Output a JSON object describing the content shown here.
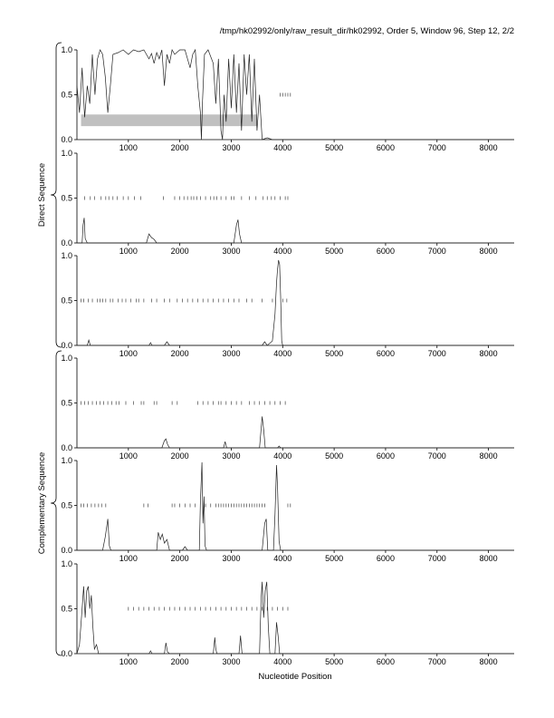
{
  "header": "/tmp/hk02992/only/raw_result_dir/hk02992, Order 5, Window 96, Step 12, 2/2",
  "xlabel": "Nucleotide Position",
  "groups": [
    "Direct Sequence",
    "Complementary Sequence"
  ],
  "chart_data": {
    "type": "line",
    "title": "/tmp/hk02992/only/raw_result_dir/hk02992, Order 5, Window 96, Step 12, 2/2",
    "xlabel": "Nucleotide Position",
    "xlim": [
      0,
      8500
    ],
    "ylim": [
      0,
      1
    ],
    "xticks": [
      1000,
      2000,
      3000,
      4000,
      5000,
      6000,
      7000,
      8000
    ],
    "yticks": [
      "0.0",
      "0.5",
      "1.0"
    ],
    "grid": false,
    "panels": [
      {
        "group": "Direct Sequence",
        "frame": 1,
        "highlight_band": {
          "x_start": 80,
          "x_end": 3500,
          "y_low": 0.15,
          "y_high": 0.28
        },
        "tick_marks_at_0_5": [
          3950,
          4000,
          4050,
          4100,
          4150
        ],
        "points": [
          [
            0,
            0.6
          ],
          [
            50,
            0.3
          ],
          [
            100,
            0.8
          ],
          [
            150,
            0.25
          ],
          [
            200,
            0.6
          ],
          [
            250,
            0.4
          ],
          [
            300,
            0.95
          ],
          [
            350,
            0.5
          ],
          [
            400,
            0.9
          ],
          [
            450,
            1.0
          ],
          [
            500,
            0.95
          ],
          [
            550,
            0.7
          ],
          [
            600,
            0.3
          ],
          [
            650,
            0.6
          ],
          [
            700,
            0.95
          ],
          [
            800,
            0.97
          ],
          [
            900,
            1.0
          ],
          [
            1000,
            0.95
          ],
          [
            1100,
            1.0
          ],
          [
            1200,
            0.98
          ],
          [
            1300,
            1.0
          ],
          [
            1400,
            0.9
          ],
          [
            1450,
            0.96
          ],
          [
            1500,
            0.85
          ],
          [
            1550,
            0.97
          ],
          [
            1600,
            0.9
          ],
          [
            1650,
            1.0
          ],
          [
            1700,
            0.6
          ],
          [
            1750,
            0.95
          ],
          [
            1800,
            0.85
          ],
          [
            1850,
            1.0
          ],
          [
            1900,
            0.95
          ],
          [
            2000,
            1.0
          ],
          [
            2100,
            1.0
          ],
          [
            2200,
            0.8
          ],
          [
            2250,
            0.95
          ],
          [
            2300,
            1.0
          ],
          [
            2350,
            0.6
          ],
          [
            2400,
            0.3
          ],
          [
            2420,
            0.0
          ],
          [
            2440,
            0.4
          ],
          [
            2480,
            0.95
          ],
          [
            2550,
            1.0
          ],
          [
            2650,
            0.85
          ],
          [
            2700,
            0.4
          ],
          [
            2750,
            0.9
          ],
          [
            2800,
            0.1
          ],
          [
            2830,
            0.0
          ],
          [
            2860,
            0.5
          ],
          [
            2900,
            0.2
          ],
          [
            2950,
            0.9
          ],
          [
            3000,
            0.35
          ],
          [
            3050,
            0.95
          ],
          [
            3100,
            0.3
          ],
          [
            3150,
            0.85
          ],
          [
            3200,
            0.1
          ],
          [
            3250,
            0.95
          ],
          [
            3300,
            0.5
          ],
          [
            3350,
            0.95
          ],
          [
            3400,
            0.2
          ],
          [
            3450,
            0.9
          ],
          [
            3500,
            0.1
          ],
          [
            3550,
            0.5
          ],
          [
            3600,
            0.0
          ],
          [
            3700,
            0.02
          ],
          [
            3800,
            0.0
          ],
          [
            8500,
            0.0
          ]
        ]
      },
      {
        "group": "Direct Sequence",
        "frame": 2,
        "tick_marks_at_0_5": [
          150,
          260,
          340,
          470,
          560,
          620,
          700,
          780,
          900,
          1000,
          1120,
          1240,
          1680,
          1900,
          2000,
          2080,
          2150,
          2220,
          2270,
          2330,
          2400,
          2500,
          2600,
          2660,
          2720,
          2800,
          2900,
          3000,
          3050,
          3200,
          3350,
          3480,
          3620,
          3700,
          3780,
          3850,
          3950,
          4050,
          4100
        ],
        "points": [
          [
            0,
            0.0
          ],
          [
            100,
            0.0
          ],
          [
            120,
            0.2
          ],
          [
            140,
            0.28
          ],
          [
            160,
            0.05
          ],
          [
            200,
            0.0
          ],
          [
            1350,
            0.0
          ],
          [
            1400,
            0.1
          ],
          [
            1450,
            0.06
          ],
          [
            1500,
            0.04
          ],
          [
            1550,
            0.0
          ],
          [
            3050,
            0.0
          ],
          [
            3100,
            0.2
          ],
          [
            3130,
            0.26
          ],
          [
            3160,
            0.1
          ],
          [
            3200,
            0.0
          ],
          [
            8500,
            0.0
          ]
        ]
      },
      {
        "group": "Direct Sequence",
        "frame": 3,
        "tick_marks_at_0_5": [
          80,
          130,
          220,
          300,
          400,
          450,
          500,
          560,
          650,
          700,
          800,
          880,
          950,
          1050,
          1150,
          1200,
          1300,
          1450,
          1550,
          1700,
          1800,
          1950,
          2050,
          2150,
          2250,
          2350,
          2450,
          2550,
          2650,
          2750,
          2850,
          2950,
          3050,
          3150,
          3300,
          3400,
          3600,
          3800,
          4000,
          4080
        ],
        "points": [
          [
            0,
            0.0
          ],
          [
            200,
            0.0
          ],
          [
            230,
            0.06
          ],
          [
            260,
            0.0
          ],
          [
            1400,
            0.0
          ],
          [
            1430,
            0.03
          ],
          [
            1460,
            0.0
          ],
          [
            1700,
            0.0
          ],
          [
            1750,
            0.04
          ],
          [
            1800,
            0.0
          ],
          [
            3600,
            0.0
          ],
          [
            3650,
            0.04
          ],
          [
            3700,
            0.0
          ],
          [
            3800,
            0.05
          ],
          [
            3850,
            0.35
          ],
          [
            3880,
            0.7
          ],
          [
            3900,
            0.85
          ],
          [
            3920,
            0.95
          ],
          [
            3940,
            0.9
          ],
          [
            3960,
            0.55
          ],
          [
            3980,
            0.05
          ],
          [
            4000,
            0.0
          ],
          [
            8500,
            0.0
          ]
        ]
      },
      {
        "group": "Complementary Sequence",
        "frame": 1,
        "tick_marks_at_0_5": [
          80,
          150,
          220,
          300,
          380,
          450,
          520,
          600,
          680,
          760,
          820,
          950,
          1100,
          1250,
          1300,
          1500,
          1550,
          1850,
          1950,
          2350,
          2450,
          2550,
          2650,
          2750,
          2800,
          2900,
          3000,
          3100,
          3200,
          3350,
          3450,
          3550,
          3650,
          3750,
          3850,
          3950,
          4050
        ],
        "points": [
          [
            0,
            0.0
          ],
          [
            1650,
            0.0
          ],
          [
            1700,
            0.08
          ],
          [
            1730,
            0.1
          ],
          [
            1760,
            0.04
          ],
          [
            1800,
            0.0
          ],
          [
            2850,
            0.0
          ],
          [
            2880,
            0.07
          ],
          [
            2910,
            0.0
          ],
          [
            3550,
            0.0
          ],
          [
            3600,
            0.35
          ],
          [
            3630,
            0.2
          ],
          [
            3660,
            0.0
          ],
          [
            3900,
            0.0
          ],
          [
            3930,
            0.02
          ],
          [
            3960,
            0.0
          ],
          [
            8500,
            0.0
          ]
        ]
      },
      {
        "group": "Complementary Sequence",
        "frame": 2,
        "tick_marks_at_0_5": [
          80,
          130,
          200,
          280,
          350,
          420,
          480,
          560,
          1300,
          1380,
          1850,
          1900,
          2000,
          2100,
          2200,
          2300,
          2500,
          2600,
          2700,
          2750,
          2800,
          2850,
          2900,
          2950,
          3000,
          3050,
          3100,
          3150,
          3200,
          3250,
          3300,
          3350,
          3400,
          3450,
          3500,
          3550,
          3600,
          3650,
          4100,
          4150
        ],
        "points": [
          [
            0,
            0.0
          ],
          [
            500,
            0.0
          ],
          [
            550,
            0.15
          ],
          [
            600,
            0.35
          ],
          [
            630,
            0.05
          ],
          [
            660,
            0.0
          ],
          [
            1550,
            0.0
          ],
          [
            1580,
            0.2
          ],
          [
            1620,
            0.12
          ],
          [
            1660,
            0.18
          ],
          [
            1700,
            0.08
          ],
          [
            1750,
            0.12
          ],
          [
            1800,
            0.0
          ],
          [
            2050,
            0.0
          ],
          [
            2100,
            0.04
          ],
          [
            2150,
            0.0
          ],
          [
            2380,
            0.0
          ],
          [
            2400,
            0.55
          ],
          [
            2430,
            0.98
          ],
          [
            2450,
            0.3
          ],
          [
            2470,
            0.6
          ],
          [
            2490,
            0.05
          ],
          [
            2520,
            0.0
          ],
          [
            3600,
            0.0
          ],
          [
            3650,
            0.3
          ],
          [
            3680,
            0.35
          ],
          [
            3710,
            0.0
          ],
          [
            3820,
            0.0
          ],
          [
            3850,
            0.4
          ],
          [
            3880,
            0.95
          ],
          [
            3900,
            0.7
          ],
          [
            3930,
            0.1
          ],
          [
            3960,
            0.0
          ],
          [
            8500,
            0.0
          ]
        ]
      },
      {
        "group": "Complementary Sequence",
        "frame": 3,
        "tick_marks_at_0_5": [
          1000,
          1100,
          1200,
          1300,
          1400,
          1500,
          1600,
          1700,
          1800,
          1900,
          2000,
          2100,
          2200,
          2300,
          2400,
          2500,
          2600,
          2700,
          2800,
          2900,
          3000,
          3100,
          3200,
          3300,
          3400,
          3500,
          3600,
          3700,
          3800,
          3900,
          4000,
          4100
        ],
        "points": [
          [
            0,
            0.0
          ],
          [
            50,
            0.1
          ],
          [
            100,
            0.5
          ],
          [
            130,
            0.75
          ],
          [
            160,
            0.4
          ],
          [
            190,
            0.7
          ],
          [
            220,
            0.75
          ],
          [
            250,
            0.5
          ],
          [
            280,
            0.65
          ],
          [
            310,
            0.3
          ],
          [
            340,
            0.05
          ],
          [
            380,
            0.1
          ],
          [
            420,
            0.0
          ],
          [
            1400,
            0.0
          ],
          [
            1430,
            0.03
          ],
          [
            1460,
            0.0
          ],
          [
            1700,
            0.0
          ],
          [
            1730,
            0.12
          ],
          [
            1760,
            0.02
          ],
          [
            1800,
            0.0
          ],
          [
            2650,
            0.0
          ],
          [
            2680,
            0.18
          ],
          [
            2700,
            0.05
          ],
          [
            2720,
            0.0
          ],
          [
            3150,
            0.0
          ],
          [
            3180,
            0.2
          ],
          [
            3210,
            0.0
          ],
          [
            3550,
            0.0
          ],
          [
            3580,
            0.6
          ],
          [
            3600,
            0.8
          ],
          [
            3630,
            0.4
          ],
          [
            3660,
            0.7
          ],
          [
            3690,
            0.8
          ],
          [
            3720,
            0.3
          ],
          [
            3750,
            0.0
          ],
          [
            3850,
            0.0
          ],
          [
            3880,
            0.35
          ],
          [
            3910,
            0.2
          ],
          [
            3940,
            0.0
          ],
          [
            8500,
            0.0
          ]
        ]
      }
    ]
  }
}
